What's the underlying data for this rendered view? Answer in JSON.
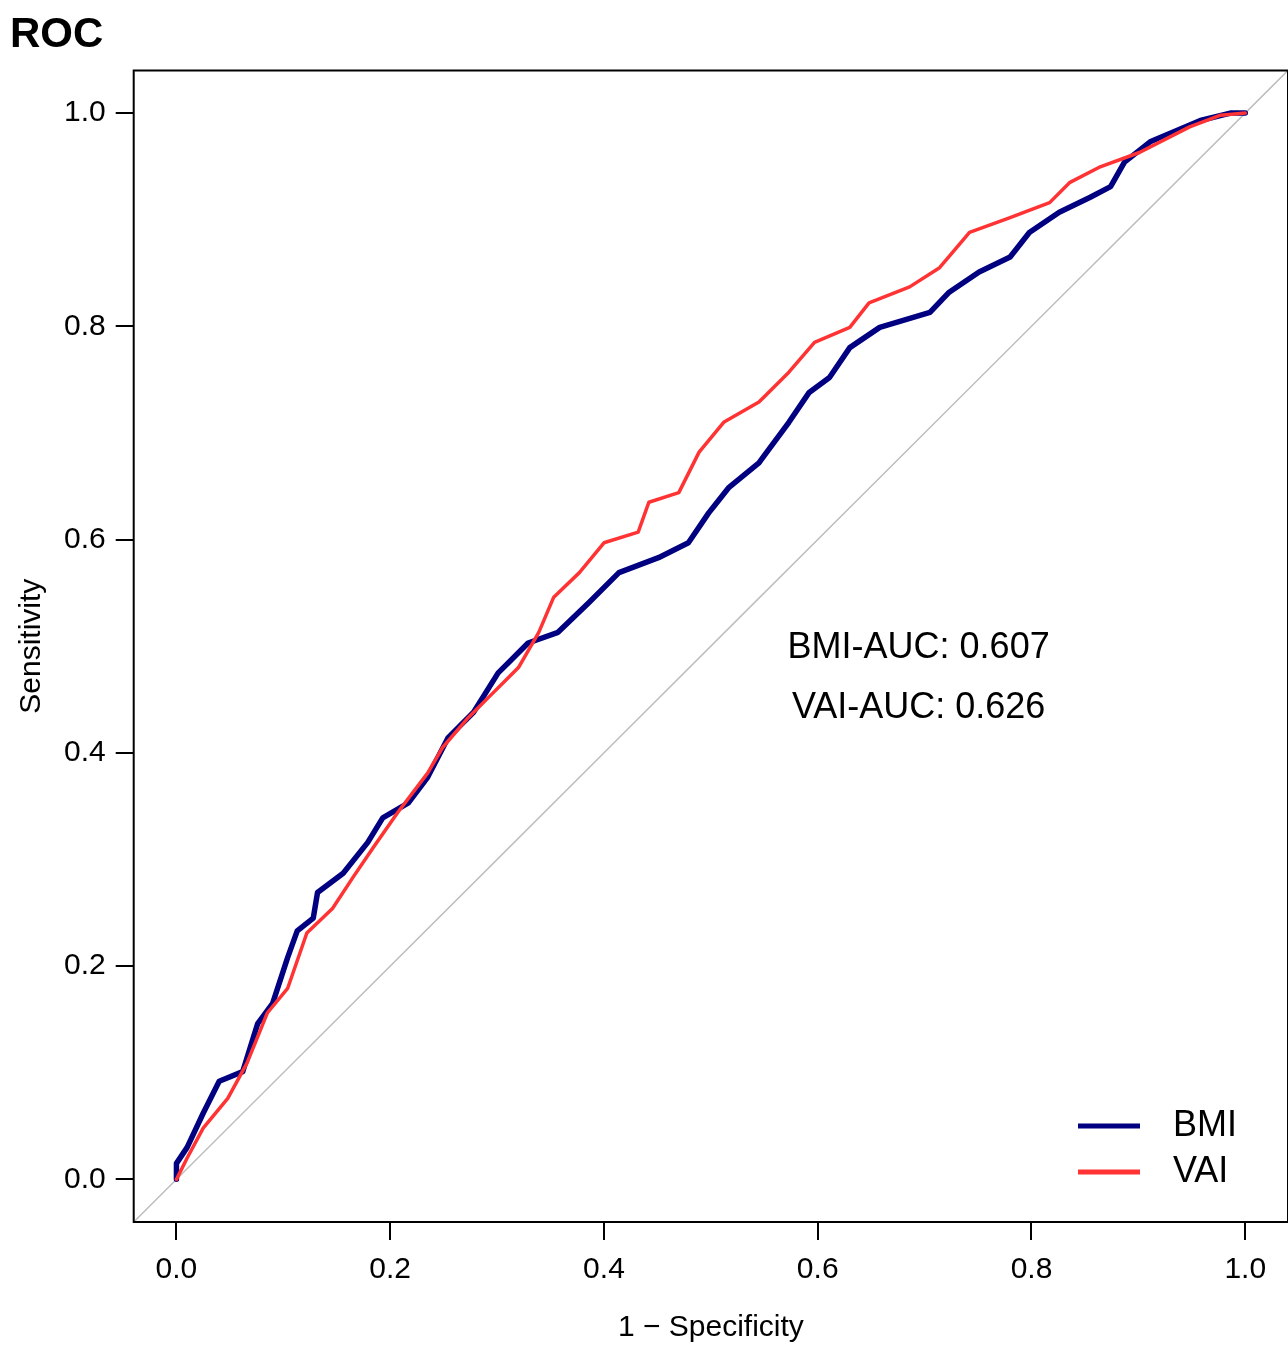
{
  "chart_data": {
    "type": "line",
    "title": "ROC",
    "xlabel": "1 − Specificity",
    "ylabel": "Sensitivity",
    "xlim": [
      -0.04,
      1.04
    ],
    "ylim": [
      -0.04,
      1.04
    ],
    "xticks": [
      {
        "value": 0,
        "label": "0.0"
      },
      {
        "value": 0.2,
        "label": "0.2"
      },
      {
        "value": 0.4,
        "label": "0.4"
      },
      {
        "value": 0.6,
        "label": "0.6"
      },
      {
        "value": 0.8,
        "label": "0.8"
      },
      {
        "value": 1,
        "label": "1.0"
      }
    ],
    "yticks": [
      {
        "value": 0,
        "label": "0.0"
      },
      {
        "value": 0.2,
        "label": "0.2"
      },
      {
        "value": 0.4,
        "label": "0.4"
      },
      {
        "value": 0.6,
        "label": "0.6"
      },
      {
        "value": 0.8,
        "label": "0.8"
      },
      {
        "value": 1,
        "label": "1.0"
      }
    ],
    "grid": false,
    "legend": "bottom right",
    "marker": "none",
    "line_style": "solid",
    "annotations": [
      "BMI-AUC: 0.607",
      "VAI-AUC: 0.626"
    ],
    "series": [
      {
        "type": "line",
        "color": "#bebebe",
        "x": [
          -0.04,
          1.04
        ],
        "values": [
          -0.04,
          1.04
        ]
      },
      {
        "name": "BMI",
        "color": "#000080",
        "x": [
          0,
          0,
          0.01,
          0.025,
          0.04,
          0.062,
          0.076,
          0.09,
          0.104,
          0.113,
          0.128,
          0.132,
          0.156,
          0.179,
          0.193,
          0.217,
          0.235,
          0.254,
          0.278,
          0.301,
          0.329,
          0.357,
          0.386,
          0.414,
          0.451,
          0.479,
          0.498,
          0.517,
          0.545,
          0.573,
          0.592,
          0.611,
          0.63,
          0.658,
          0.705,
          0.723,
          0.751,
          0.78,
          0.798,
          0.826,
          0.855,
          0.874,
          0.887,
          0.911,
          0.958,
          0.986,
          1
        ],
        "values": [
          0,
          0.015,
          0.03,
          0.062,
          0.092,
          0.101,
          0.146,
          0.165,
          0.208,
          0.233,
          0.245,
          0.269,
          0.287,
          0.316,
          0.339,
          0.353,
          0.377,
          0.414,
          0.438,
          0.475,
          0.503,
          0.513,
          0.541,
          0.569,
          0.583,
          0.597,
          0.625,
          0.649,
          0.672,
          0.71,
          0.738,
          0.752,
          0.78,
          0.799,
          0.813,
          0.832,
          0.851,
          0.865,
          0.888,
          0.907,
          0.921,
          0.931,
          0.954,
          0.973,
          0.993,
          1,
          1
        ]
      },
      {
        "name": "VAI",
        "color": "#ff3333",
        "x": [
          0,
          0.01,
          0.025,
          0.048,
          0.066,
          0.085,
          0.104,
          0.122,
          0.146,
          0.165,
          0.184,
          0.207,
          0.235,
          0.249,
          0.273,
          0.292,
          0.32,
          0.339,
          0.353,
          0.377,
          0.4,
          0.432,
          0.442,
          0.47,
          0.489,
          0.512,
          0.545,
          0.573,
          0.597,
          0.63,
          0.648,
          0.686,
          0.714,
          0.742,
          0.78,
          0.817,
          0.836,
          0.863,
          0.901,
          0.948,
          0.977,
          1
        ],
        "values": [
          0,
          0.02,
          0.048,
          0.076,
          0.109,
          0.156,
          0.179,
          0.231,
          0.254,
          0.283,
          0.311,
          0.344,
          0.381,
          0.405,
          0.433,
          0.452,
          0.48,
          0.513,
          0.546,
          0.569,
          0.597,
          0.607,
          0.635,
          0.644,
          0.682,
          0.71,
          0.729,
          0.757,
          0.785,
          0.799,
          0.822,
          0.837,
          0.855,
          0.888,
          0.902,
          0.916,
          0.935,
          0.949,
          0.963,
          0.987,
          0.998,
          1
        ]
      }
    ]
  }
}
